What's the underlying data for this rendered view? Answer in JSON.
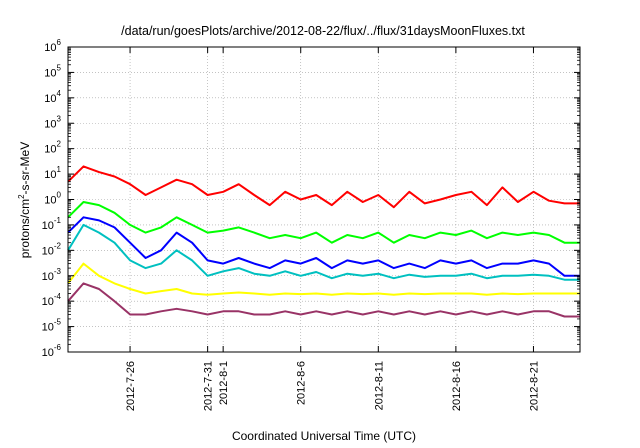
{
  "chart_data": {
    "type": "line",
    "title": "/data/run/goesPlots/archive/2012-08-22/flux/../flux/31daysMoonFluxes.txt",
    "xlabel": "Coordinated Universal Time (UTC)",
    "ylabel": {
      "pre": "protons/cm",
      "sup": "2",
      "post": "-s-sr-MeV"
    },
    "y_scale": "log",
    "ylim": [
      1e-06,
      1000000.0
    ],
    "y_ticks": [
      {
        "base": "10",
        "exp": "-6",
        "value": 1e-06
      },
      {
        "base": "10",
        "exp": "-5",
        "value": 1e-05
      },
      {
        "base": "10",
        "exp": "-4",
        "value": 0.0001
      },
      {
        "base": "10",
        "exp": "-3",
        "value": 0.001
      },
      {
        "base": "10",
        "exp": "-2",
        "value": 0.01
      },
      {
        "base": "10",
        "exp": "-1",
        "value": 0.1
      },
      {
        "base": "10",
        "exp": "0",
        "value": 1
      },
      {
        "base": "10",
        "exp": "1",
        "value": 10
      },
      {
        "base": "10",
        "exp": "2",
        "value": 100
      },
      {
        "base": "10",
        "exp": "3",
        "value": 1000
      },
      {
        "base": "10",
        "exp": "4",
        "value": 10000
      },
      {
        "base": "10",
        "exp": "5",
        "value": 100000
      },
      {
        "base": "10",
        "exp": "6",
        "value": 1000000
      }
    ],
    "xlim": [
      "2012-07-22",
      "2012-08-24"
    ],
    "x_ticks": [
      {
        "label": "2012-7-26",
        "date": "2012-07-26"
      },
      {
        "label": "2012-7-31",
        "date": "2012-07-31"
      },
      {
        "label": "2012-8-1",
        "date": "2012-08-01"
      },
      {
        "label": "2012-8-6",
        "date": "2012-08-06"
      },
      {
        "label": "2012-8-11",
        "date": "2012-08-11"
      },
      {
        "label": "2012-8-16",
        "date": "2012-08-16"
      },
      {
        "label": "2012-8-21",
        "date": "2012-08-21"
      }
    ],
    "grid": true,
    "legend": "none",
    "series": [
      {
        "color": "#ff0000",
        "x": [
          "2012-07-22",
          "2012-07-23",
          "2012-07-24",
          "2012-07-25",
          "2012-07-26",
          "2012-07-27",
          "2012-07-28",
          "2012-07-29",
          "2012-07-30",
          "2012-07-31",
          "2012-08-01",
          "2012-08-02",
          "2012-08-03",
          "2012-08-04",
          "2012-08-05",
          "2012-08-06",
          "2012-08-07",
          "2012-08-08",
          "2012-08-09",
          "2012-08-10",
          "2012-08-11",
          "2012-08-12",
          "2012-08-13",
          "2012-08-14",
          "2012-08-15",
          "2012-08-16",
          "2012-08-17",
          "2012-08-18",
          "2012-08-19",
          "2012-08-20",
          "2012-08-21",
          "2012-08-22",
          "2012-08-23",
          "2012-08-24"
        ],
        "y": [
          5,
          20,
          12,
          8,
          4,
          1.5,
          3,
          6,
          4,
          1.5,
          2,
          4,
          1.5,
          0.6,
          2,
          1,
          1.5,
          0.6,
          2,
          0.8,
          1.5,
          0.5,
          2,
          0.7,
          1,
          1.5,
          2,
          0.6,
          3,
          0.8,
          2,
          0.9,
          0.7,
          0.7
        ]
      },
      {
        "color": "#00ff00",
        "x": [
          "2012-07-22",
          "2012-07-23",
          "2012-07-24",
          "2012-07-25",
          "2012-07-26",
          "2012-07-27",
          "2012-07-28",
          "2012-07-29",
          "2012-07-30",
          "2012-07-31",
          "2012-08-01",
          "2012-08-02",
          "2012-08-03",
          "2012-08-04",
          "2012-08-05",
          "2012-08-06",
          "2012-08-07",
          "2012-08-08",
          "2012-08-09",
          "2012-08-10",
          "2012-08-11",
          "2012-08-12",
          "2012-08-13",
          "2012-08-14",
          "2012-08-15",
          "2012-08-16",
          "2012-08-17",
          "2012-08-18",
          "2012-08-19",
          "2012-08-20",
          "2012-08-21",
          "2012-08-22",
          "2012-08-23",
          "2012-08-24"
        ],
        "y": [
          0.2,
          0.8,
          0.6,
          0.3,
          0.1,
          0.05,
          0.08,
          0.2,
          0.1,
          0.05,
          0.06,
          0.08,
          0.05,
          0.03,
          0.04,
          0.03,
          0.05,
          0.02,
          0.04,
          0.03,
          0.05,
          0.02,
          0.04,
          0.03,
          0.05,
          0.04,
          0.06,
          0.03,
          0.05,
          0.04,
          0.05,
          0.04,
          0.02,
          0.02
        ]
      },
      {
        "color": "#0000ff",
        "x": [
          "2012-07-22",
          "2012-07-23",
          "2012-07-24",
          "2012-07-25",
          "2012-07-26",
          "2012-07-27",
          "2012-07-28",
          "2012-07-29",
          "2012-07-30",
          "2012-07-31",
          "2012-08-01",
          "2012-08-02",
          "2012-08-03",
          "2012-08-04",
          "2012-08-05",
          "2012-08-06",
          "2012-08-07",
          "2012-08-08",
          "2012-08-09",
          "2012-08-10",
          "2012-08-11",
          "2012-08-12",
          "2012-08-13",
          "2012-08-14",
          "2012-08-15",
          "2012-08-16",
          "2012-08-17",
          "2012-08-18",
          "2012-08-19",
          "2012-08-20",
          "2012-08-21",
          "2012-08-22",
          "2012-08-23",
          "2012-08-24"
        ],
        "y": [
          0.05,
          0.2,
          0.15,
          0.08,
          0.02,
          0.005,
          0.01,
          0.05,
          0.02,
          0.004,
          0.003,
          0.005,
          0.003,
          0.002,
          0.004,
          0.003,
          0.005,
          0.002,
          0.004,
          0.003,
          0.004,
          0.002,
          0.003,
          0.002,
          0.004,
          0.003,
          0.004,
          0.002,
          0.003,
          0.003,
          0.004,
          0.003,
          0.001,
          0.001
        ]
      },
      {
        "color": "#00c0c0",
        "x": [
          "2012-07-22",
          "2012-07-23",
          "2012-07-24",
          "2012-07-25",
          "2012-07-26",
          "2012-07-27",
          "2012-07-28",
          "2012-07-29",
          "2012-07-30",
          "2012-07-31",
          "2012-08-01",
          "2012-08-02",
          "2012-08-03",
          "2012-08-04",
          "2012-08-05",
          "2012-08-06",
          "2012-08-07",
          "2012-08-08",
          "2012-08-09",
          "2012-08-10",
          "2012-08-11",
          "2012-08-12",
          "2012-08-13",
          "2012-08-14",
          "2012-08-15",
          "2012-08-16",
          "2012-08-17",
          "2012-08-18",
          "2012-08-19",
          "2012-08-20",
          "2012-08-21",
          "2012-08-22",
          "2012-08-23",
          "2012-08-24"
        ],
        "y": [
          0.01,
          0.1,
          0.05,
          0.02,
          0.004,
          0.002,
          0.003,
          0.01,
          0.004,
          0.001,
          0.0015,
          0.002,
          0.0012,
          0.001,
          0.0015,
          0.001,
          0.0014,
          0.0008,
          0.0012,
          0.001,
          0.0012,
          0.0008,
          0.0011,
          0.0009,
          0.001,
          0.001,
          0.0012,
          0.0008,
          0.001,
          0.001,
          0.0011,
          0.001,
          0.0007,
          0.0007
        ]
      },
      {
        "color": "#ffff00",
        "x": [
          "2012-07-22",
          "2012-07-23",
          "2012-07-24",
          "2012-07-25",
          "2012-07-26",
          "2012-07-27",
          "2012-07-28",
          "2012-07-29",
          "2012-07-30",
          "2012-07-31",
          "2012-08-01",
          "2012-08-02",
          "2012-08-03",
          "2012-08-04",
          "2012-08-05",
          "2012-08-06",
          "2012-08-07",
          "2012-08-08",
          "2012-08-09",
          "2012-08-10",
          "2012-08-11",
          "2012-08-12",
          "2012-08-13",
          "2012-08-14",
          "2012-08-15",
          "2012-08-16",
          "2012-08-17",
          "2012-08-18",
          "2012-08-19",
          "2012-08-20",
          "2012-08-21",
          "2012-08-22",
          "2012-08-23",
          "2012-08-24"
        ],
        "y": [
          0.0005,
          0.003,
          0.001,
          0.0005,
          0.0003,
          0.0002,
          0.00025,
          0.0003,
          0.0002,
          0.00018,
          0.0002,
          0.00022,
          0.0002,
          0.00018,
          0.0002,
          0.00019,
          0.0002,
          0.00018,
          0.0002,
          0.00019,
          0.0002,
          0.00018,
          0.0002,
          0.00019,
          0.0002,
          0.0002,
          0.0002,
          0.00018,
          0.0002,
          0.00019,
          0.0002,
          0.0002,
          0.0002,
          0.0002
        ]
      },
      {
        "color": "#993366",
        "x": [
          "2012-07-22",
          "2012-07-23",
          "2012-07-24",
          "2012-07-25",
          "2012-07-26",
          "2012-07-27",
          "2012-07-28",
          "2012-07-29",
          "2012-07-30",
          "2012-07-31",
          "2012-08-01",
          "2012-08-02",
          "2012-08-03",
          "2012-08-04",
          "2012-08-05",
          "2012-08-06",
          "2012-08-07",
          "2012-08-08",
          "2012-08-09",
          "2012-08-10",
          "2012-08-11",
          "2012-08-12",
          "2012-08-13",
          "2012-08-14",
          "2012-08-15",
          "2012-08-16",
          "2012-08-17",
          "2012-08-18",
          "2012-08-19",
          "2012-08-20",
          "2012-08-21",
          "2012-08-22",
          "2012-08-23",
          "2012-08-24"
        ],
        "y": [
          0.0001,
          0.0005,
          0.0003,
          0.0001,
          3e-05,
          3e-05,
          4e-05,
          5e-05,
          4e-05,
          3e-05,
          4e-05,
          4e-05,
          3e-05,
          3e-05,
          4e-05,
          3e-05,
          4e-05,
          3e-05,
          4e-05,
          3e-05,
          4e-05,
          3e-05,
          4e-05,
          3e-05,
          4e-05,
          3e-05,
          4e-05,
          3e-05,
          4e-05,
          3e-05,
          4e-05,
          4e-05,
          2.5e-05,
          2.5e-05
        ]
      }
    ]
  }
}
